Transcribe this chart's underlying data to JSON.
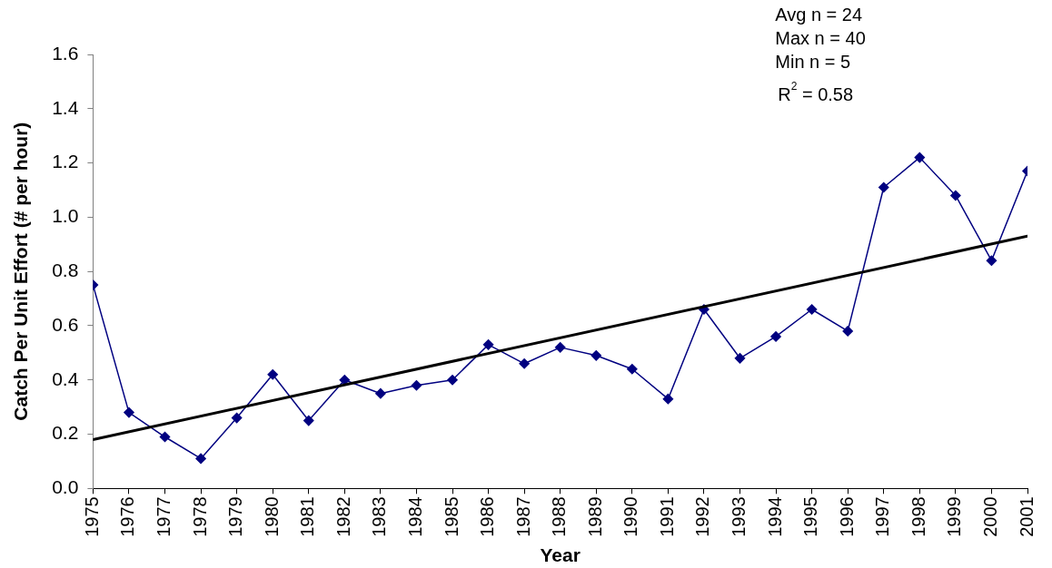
{
  "chart_data": {
    "type": "line",
    "xlabel": "Year",
    "ylabel": "Catch Per Unit Effort (# per hour)",
    "x": [
      1975,
      1976,
      1977,
      1978,
      1979,
      1980,
      1981,
      1982,
      1983,
      1984,
      1985,
      1986,
      1987,
      1988,
      1989,
      1990,
      1991,
      1992,
      1993,
      1994,
      1995,
      1996,
      1997,
      1998,
      1999,
      2000,
      2001
    ],
    "series": [
      {
        "color": "#000080",
        "marker": "diamond",
        "values": [
          0.75,
          0.28,
          0.19,
          0.11,
          0.26,
          0.42,
          0.25,
          0.4,
          0.35,
          0.38,
          0.4,
          0.53,
          0.46,
          0.52,
          0.49,
          0.44,
          0.33,
          0.66,
          0.48,
          0.56,
          0.66,
          0.58,
          1.11,
          1.22,
          1.08,
          0.84,
          1.17
        ]
      },
      {
        "type": "line",
        "color": "#000000",
        "marker": "none",
        "x": [
          1975,
          2001
        ],
        "values": [
          0.18,
          0.93
        ]
      }
    ],
    "xlim": [
      1975,
      2001
    ],
    "xticks": [
      1975,
      1976,
      1977,
      1978,
      1979,
      1980,
      1981,
      1982,
      1983,
      1984,
      1985,
      1986,
      1987,
      1988,
      1989,
      1990,
      1991,
      1992,
      1993,
      1994,
      1995,
      1996,
      1997,
      1998,
      1999,
      2000,
      2001
    ],
    "ylim": [
      0,
      1.6
    ],
    "yticks": [
      {
        "value": 0,
        "label": "0.0"
      },
      0.2,
      0.4,
      0.6,
      0.8,
      {
        "value": 1,
        "label": "1.0"
      },
      1.2,
      1.4,
      1.6
    ],
    "annotations": [
      "Avg n = 24",
      "Max n = 40",
      "Min n = 5",
      "R$^{2}$ = 0.58"
    ],
    "grid": false,
    "legend": false
  }
}
